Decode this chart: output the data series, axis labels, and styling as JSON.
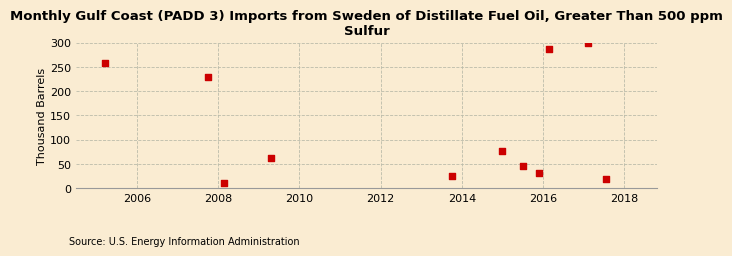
{
  "title": "Monthly Gulf Coast (PADD 3) Imports from Sweden of Distillate Fuel Oil, Greater Than 500 ppm\nSulfur",
  "ylabel": "Thousand Barrels",
  "source": "Source: U.S. Energy Information Administration",
  "background_color": "#faecd2",
  "plot_bg_color": "#faecd2",
  "marker_color": "#cc0000",
  "marker": "s",
  "marker_size": 4,
  "xlim": [
    2004.5,
    2018.8
  ],
  "ylim": [
    0,
    300
  ],
  "yticks": [
    0,
    50,
    100,
    150,
    200,
    250,
    300
  ],
  "xticks": [
    2006,
    2008,
    2010,
    2012,
    2014,
    2016,
    2018
  ],
  "grid_color": "#bbbbaa",
  "data_x": [
    2005.2,
    2007.75,
    2008.15,
    2009.3,
    2013.75,
    2015.0,
    2015.5,
    2015.9,
    2016.15,
    2017.1,
    2017.55
  ],
  "data_y": [
    258,
    229,
    10,
    63,
    26,
    77,
    46,
    31,
    287,
    299,
    19
  ],
  "title_fontsize": 9.5,
  "tick_fontsize": 8,
  "ylabel_fontsize": 8,
  "source_fontsize": 7
}
